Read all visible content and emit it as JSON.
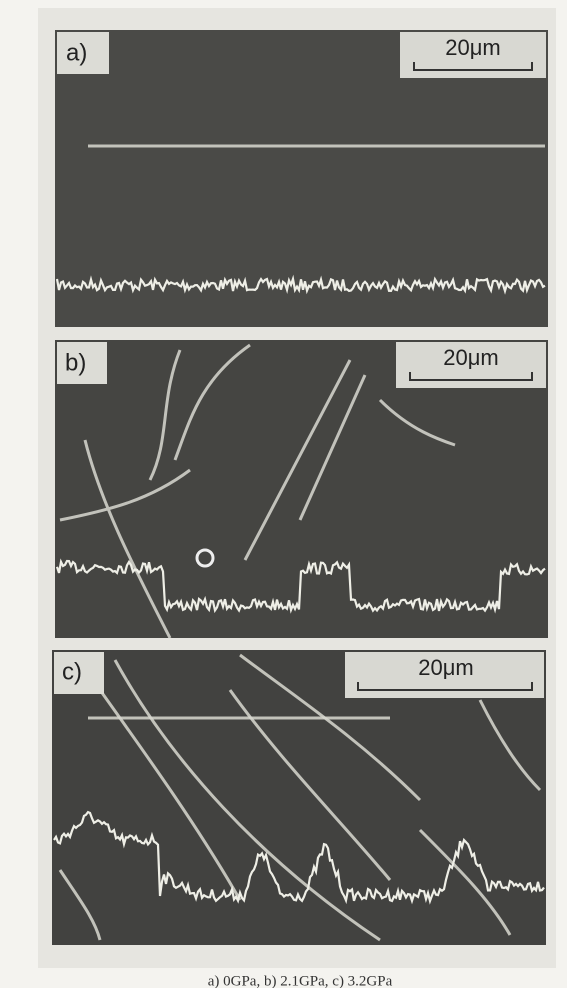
{
  "panels": [
    {
      "label": "a)",
      "scale_bar": "20μm"
    },
    {
      "label": "b)",
      "scale_bar": "20μm"
    },
    {
      "label": "c)",
      "scale_bar": "20μm"
    }
  ],
  "caption": "a) 0GPa,  b) 2.1GPa,  c) 3.2GPa"
}
